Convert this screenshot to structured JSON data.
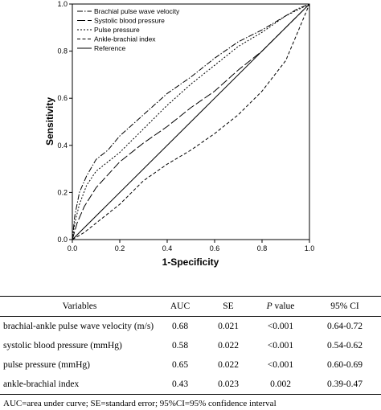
{
  "chart_data": {
    "type": "line",
    "title": "",
    "xlabel": "1-Specificity",
    "ylabel": "Sensitivity",
    "xlim": [
      0,
      1
    ],
    "ylim": [
      0,
      1
    ],
    "xticks": [
      "0.0",
      "0.2",
      "0.4",
      "0.6",
      "0.8",
      "1.0"
    ],
    "yticks": [
      "0.0",
      "0.2",
      "0.4",
      "0.6",
      "0.8",
      "1.0"
    ],
    "legend_position": "top-left",
    "series": [
      {
        "name": "Brachial pulse wave velocity",
        "dash": "7,2,1.5,2",
        "x": [
          0,
          0.01,
          0.03,
          0.06,
          0.1,
          0.15,
          0.2,
          0.3,
          0.4,
          0.5,
          0.6,
          0.7,
          0.8,
          0.9,
          0.95,
          1
        ],
        "y": [
          0,
          0.1,
          0.2,
          0.27,
          0.34,
          0.38,
          0.44,
          0.53,
          0.62,
          0.69,
          0.77,
          0.84,
          0.89,
          0.95,
          0.98,
          1
        ]
      },
      {
        "name": "Systolic blood pressure",
        "dash": "10,3",
        "x": [
          0,
          0.02,
          0.05,
          0.1,
          0.2,
          0.3,
          0.4,
          0.5,
          0.6,
          0.7,
          0.8,
          0.9,
          1
        ],
        "y": [
          0,
          0.07,
          0.14,
          0.22,
          0.33,
          0.41,
          0.48,
          0.56,
          0.63,
          0.72,
          0.8,
          0.9,
          1
        ]
      },
      {
        "name": "Pulse pressure",
        "dash": "2,2",
        "x": [
          0,
          0.01,
          0.03,
          0.06,
          0.1,
          0.15,
          0.2,
          0.3,
          0.4,
          0.5,
          0.6,
          0.7,
          0.8,
          0.9,
          1
        ],
        "y": [
          0,
          0.07,
          0.15,
          0.23,
          0.29,
          0.33,
          0.37,
          0.47,
          0.57,
          0.66,
          0.74,
          0.82,
          0.88,
          0.95,
          1
        ]
      },
      {
        "name": "Ankle-brachial index",
        "dash": "4,2.5",
        "x": [
          0,
          0.05,
          0.1,
          0.2,
          0.3,
          0.4,
          0.5,
          0.6,
          0.7,
          0.8,
          0.9,
          0.95,
          1
        ],
        "y": [
          0,
          0.03,
          0.07,
          0.15,
          0.25,
          0.32,
          0.38,
          0.45,
          0.53,
          0.63,
          0.76,
          0.88,
          1
        ]
      },
      {
        "name": "Reference",
        "dash": "",
        "x": [
          0,
          1
        ],
        "y": [
          0,
          1
        ]
      }
    ]
  },
  "table": {
    "headers": [
      "Variables",
      "AUC",
      "SE",
      "P value",
      "95% CI"
    ],
    "rows": [
      [
        "brachial-ankle pulse wave velocity (m/s)",
        "0.68",
        "0.021",
        "<0.001",
        "0.64-0.72"
      ],
      [
        "systolic blood pressure (mmHg)",
        "0.58",
        "0.022",
        "<0.001",
        "0.54-0.62"
      ],
      [
        "pulse pressure (mmHg)",
        "0.65",
        "0.022",
        "<0.001",
        "0.60-0.69"
      ],
      [
        "ankle-brachial index",
        "0.43",
        "0.023",
        "0.002",
        "0.39-0.47"
      ]
    ]
  },
  "footnote": "AUC=area under curve; SE=standard error; 95%CI=95% confidence interval"
}
